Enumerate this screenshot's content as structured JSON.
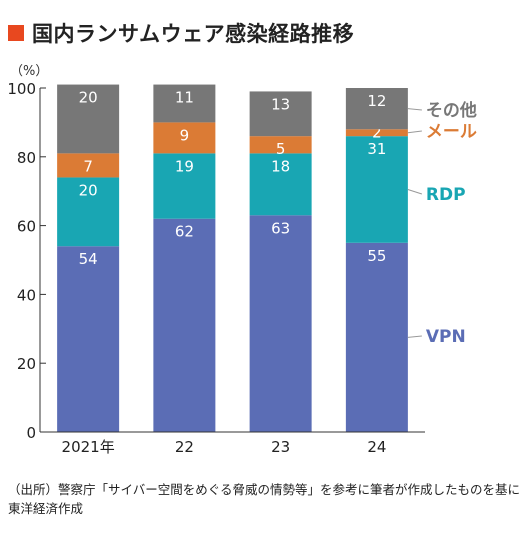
{
  "title": "国内ランサムウェア感染経路推移",
  "unit_label": "（%）",
  "source_lines": [
    "（出所）警察庁「サイバー空間をめぐる脅威の情勢等」を参考に筆者が作成したものを基に",
    "東洋経済作成"
  ],
  "colors": {
    "title_mark": "#e8481f",
    "VPN": "#5b6db5",
    "RDP": "#19a6b3",
    "メール": "#db7b35",
    "その他": "#777777"
  },
  "chart_data": {
    "type": "bar",
    "stacked": true,
    "categories": [
      "2021年",
      "22",
      "23",
      "24"
    ],
    "series": [
      {
        "name": "VPN",
        "values": [
          54,
          62,
          63,
          55
        ]
      },
      {
        "name": "RDP",
        "values": [
          20,
          19,
          18,
          31
        ]
      },
      {
        "name": "メール",
        "values": [
          7,
          9,
          5,
          2
        ]
      },
      {
        "name": "その他",
        "values": [
          20,
          11,
          13,
          12
        ]
      }
    ],
    "ylim": [
      0,
      100
    ],
    "yticks": [
      0,
      20,
      40,
      60,
      80,
      100
    ],
    "legend": "right, labels next to last bar",
    "grid": false
  }
}
